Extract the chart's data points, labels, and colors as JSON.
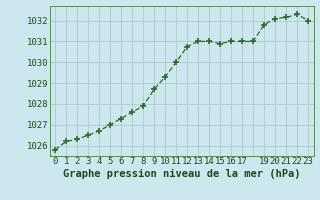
{
  "x": [
    0,
    1,
    2,
    3,
    4,
    5,
    6,
    7,
    8,
    9,
    10,
    11,
    12,
    13,
    14,
    15,
    16,
    17,
    18,
    19,
    20,
    21,
    22,
    23
  ],
  "y": [
    1025.8,
    1026.2,
    1026.3,
    1026.5,
    1026.7,
    1027.0,
    1027.3,
    1027.6,
    1027.9,
    1028.7,
    1029.3,
    1030.0,
    1030.75,
    1031.0,
    1031.0,
    1030.9,
    1031.0,
    1031.0,
    1031.0,
    1031.8,
    1032.1,
    1032.15,
    1032.3,
    1032.0
  ],
  "line_color": "#2d6a2d",
  "marker_color": "#2d6a2d",
  "bg_color": "#cce8ee",
  "grid_color": "#b0c8cc",
  "xlabel": "Graphe pression niveau de la mer (hPa)",
  "ylabel_ticks": [
    1026,
    1027,
    1028,
    1029,
    1030,
    1031,
    1032
  ],
  "xtick_labels": [
    "0",
    "1",
    "2",
    "3",
    "4",
    "5",
    "6",
    "7",
    "8",
    "9",
    "10",
    "11",
    "12",
    "13",
    "14",
    "15",
    "16",
    "17",
    "",
    "19",
    "20",
    "21",
    "22",
    "23"
  ],
  "ylim": [
    1025.5,
    1032.7
  ],
  "xlim": [
    -0.5,
    23.5
  ],
  "title_color": "#1a4a1a",
  "xlabel_fontsize": 7.5,
  "tick_fontsize": 6.5
}
